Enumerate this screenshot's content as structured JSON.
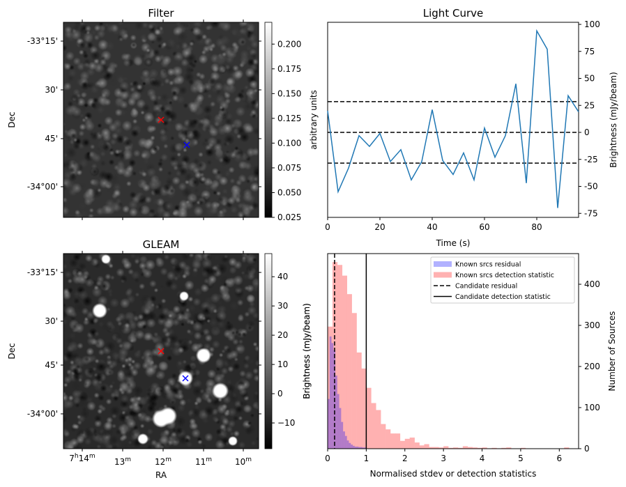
{
  "chart_data": [
    {
      "type": "heatmap",
      "title": "Filter",
      "xlabel": "",
      "ylabel": "Dec",
      "yticks": [
        "-33°15'",
        "30'",
        "45'",
        "-34°00'"
      ],
      "colorbar": {
        "label": "arbitrary units",
        "ticks": [
          "0.025",
          "0.050",
          "0.075",
          "0.100",
          "0.125",
          "0.150",
          "0.175",
          "0.200"
        ],
        "range": [
          0.025,
          0.222
        ]
      },
      "markers": [
        {
          "name": "candidate",
          "color": "#ff0000"
        },
        {
          "name": "reference",
          "color": "#0000ff"
        }
      ]
    },
    {
      "type": "line",
      "title": "Light Curve",
      "xlabel": "Time (s)",
      "ylabel": "Brightness (mJy/beam)",
      "xlim": [
        0,
        96
      ],
      "ylim": [
        -77,
        100
      ],
      "xticks": [
        "0",
        "20",
        "40",
        "60",
        "80"
      ],
      "yticks": [
        "-75",
        "-50",
        "-25",
        "0",
        "25",
        "50",
        "75",
        "100"
      ],
      "x": [
        0,
        4,
        8,
        12,
        16,
        20,
        24,
        28,
        32,
        36,
        40,
        44,
        48,
        52,
        56,
        60,
        64,
        68,
        72,
        76,
        80,
        84,
        88,
        92,
        96
      ],
      "y": [
        20,
        -55,
        -33,
        -3,
        -13,
        -1,
        -27,
        -16,
        -44,
        -27,
        21,
        -26,
        -39,
        -19,
        -44,
        4,
        -23,
        -3,
        45,
        -47,
        94,
        77,
        -70,
        34,
        19
      ],
      "hlines": [
        28.5,
        0,
        -28.5
      ],
      "line_color": "#1f77b4"
    },
    {
      "type": "heatmap",
      "title": "GLEAM",
      "xlabel": "RA",
      "ylabel": "Dec",
      "xticks": [
        "7h14m",
        "13m",
        "12m",
        "11m",
        "10m"
      ],
      "xticks_parts": [
        [
          "7",
          "h",
          "14",
          "m"
        ],
        [
          "",
          "",
          "13",
          "m"
        ],
        [
          "",
          "",
          "12",
          "m"
        ],
        [
          "",
          "",
          "11",
          "m"
        ],
        [
          "",
          "",
          "10",
          "m"
        ]
      ],
      "yticks": [
        "-33°15'",
        "30'",
        "45'",
        "-34°00'"
      ],
      "colorbar": {
        "label": "Brightness (mJy/beam)",
        "ticks": [
          "−10",
          "0",
          "10",
          "20",
          "30",
          "40"
        ],
        "range": [
          -18.8,
          47.9
        ]
      },
      "markers": [
        {
          "name": "candidate",
          "color": "#ff0000"
        },
        {
          "name": "reference",
          "color": "#0000ff"
        }
      ]
    },
    {
      "type": "bar",
      "xlabel": "Normalised stdev or detection statistics",
      "ylabel_left": "Brightness (mJy/beam)",
      "ylabel_right": "Number of Sources",
      "xlim": [
        0,
        6.5
      ],
      "ylim": [
        0,
        473
      ],
      "xticks": [
        "0",
        "1",
        "2",
        "3",
        "4",
        "5",
        "6"
      ],
      "yticks": [
        "0",
        "100",
        "200",
        "300",
        "400"
      ],
      "series": [
        {
          "name": "Known srcs residual",
          "color": "#0000ff",
          "alpha": 0.3,
          "bin_width": 0.05,
          "values": [
            121,
            273,
            257,
            240,
            178,
            133,
            99,
            65,
            42,
            31,
            20,
            14,
            10,
            7,
            5,
            5,
            4,
            4,
            3,
            3
          ]
        },
        {
          "name": "Known srcs detection statistic",
          "color": "#ff0000",
          "alpha": 0.3,
          "bin_width": 0.125,
          "values": [
            297,
            454,
            447,
            421,
            376,
            330,
            234,
            195,
            148,
            111,
            94,
            60,
            47,
            37,
            37,
            19,
            24,
            27,
            15,
            8,
            11,
            4,
            4,
            3,
            6,
            2,
            3,
            2,
            6,
            4,
            3,
            2,
            3,
            1,
            2,
            1,
            2,
            3,
            0,
            0,
            2,
            0,
            0,
            0,
            0,
            0,
            0,
            0,
            0,
            3
          ]
        }
      ],
      "vlines": [
        {
          "name": "Candidate residual",
          "x": 0.18,
          "style": "dashed"
        },
        {
          "name": "Candidate detection statistic",
          "x": 1.0,
          "style": "solid"
        }
      ],
      "legend": "top-right"
    }
  ]
}
